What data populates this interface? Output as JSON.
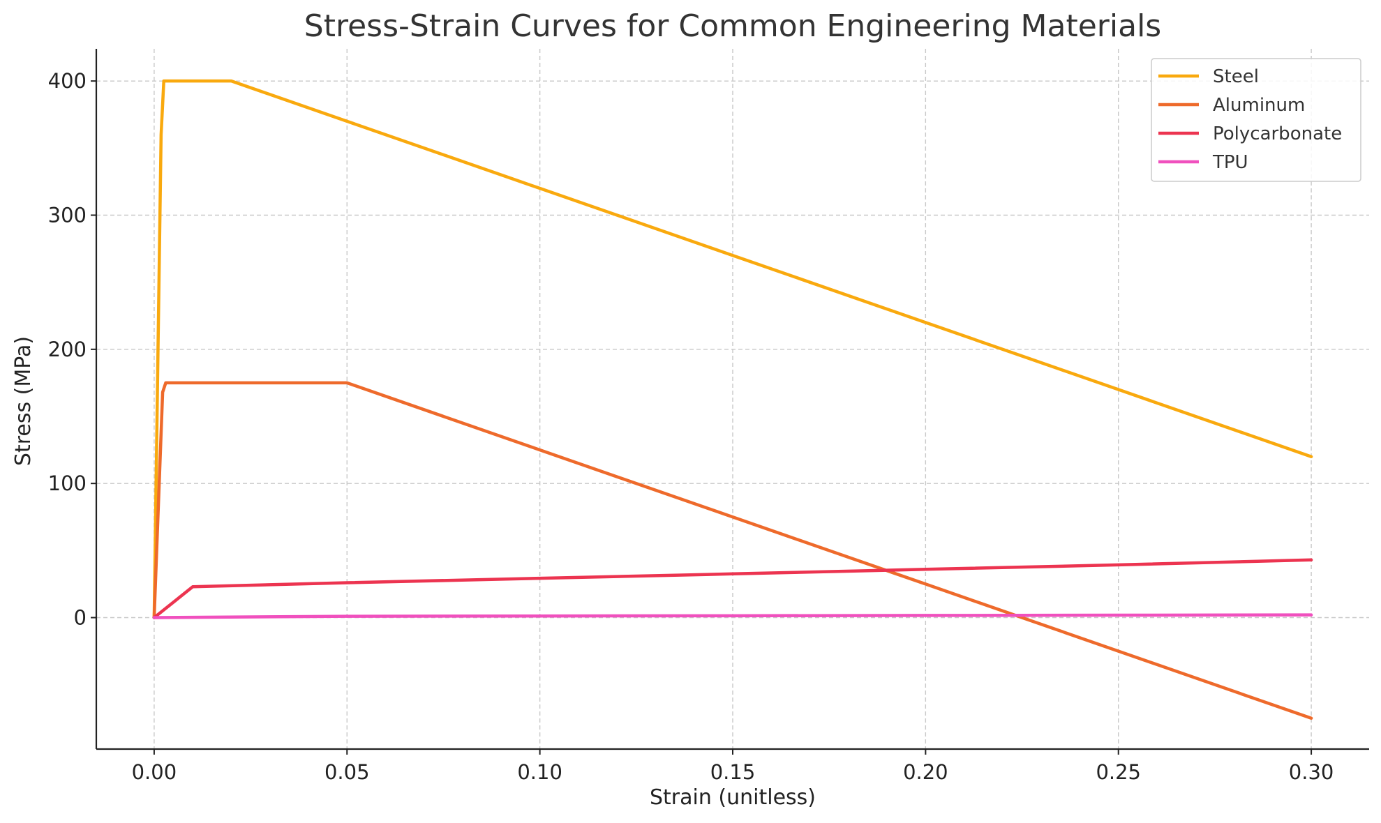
{
  "chart_data": {
    "type": "line",
    "title": "Stress-Strain Curves for Common Engineering Materials",
    "xlabel": "Strain (unitless)",
    "ylabel": "Stress (MPa)",
    "xlim": [
      -0.015,
      0.315
    ],
    "ylim": [
      -98,
      424
    ],
    "x_ticks": [
      0.0,
      0.05,
      0.1,
      0.15,
      0.2,
      0.25,
      0.3
    ],
    "x_tick_labels": [
      "0.00",
      "0.05",
      "0.10",
      "0.15",
      "0.20",
      "0.25",
      "0.30"
    ],
    "y_ticks": [
      0,
      100,
      200,
      300,
      400
    ],
    "y_tick_labels": [
      "0",
      "100",
      "200",
      "300",
      "400"
    ],
    "grid": true,
    "legend_position": "top-right",
    "series": [
      {
        "name": "Steel",
        "color": "#F9A90E",
        "x": [
          0.0,
          0.0018,
          0.0025,
          0.02,
          0.05,
          0.1,
          0.15,
          0.2,
          0.25,
          0.3
        ],
        "y": [
          0,
          360,
          400,
          400,
          370,
          320,
          270,
          220,
          170,
          120
        ]
      },
      {
        "name": "Aluminum",
        "color": "#EE6A2B",
        "x": [
          0.0,
          0.0022,
          0.003,
          0.05,
          0.1,
          0.15,
          0.2,
          0.25,
          0.3
        ],
        "y": [
          0,
          168,
          175,
          175,
          125,
          75,
          25,
          -25,
          -75
        ]
      },
      {
        "name": "Polycarbonate",
        "color": "#EC3450",
        "x": [
          0.0,
          0.01,
          0.05,
          0.1,
          0.15,
          0.2,
          0.25,
          0.3
        ],
        "y": [
          0,
          23,
          26,
          29.3,
          32.6,
          36,
          39.3,
          43
        ]
      },
      {
        "name": "TPU",
        "color": "#F050BE",
        "x": [
          0.0,
          0.05,
          0.1,
          0.15,
          0.2,
          0.25,
          0.3
        ],
        "y": [
          0,
          1,
          1.2,
          1.4,
          1.6,
          1.8,
          2
        ]
      }
    ]
  }
}
